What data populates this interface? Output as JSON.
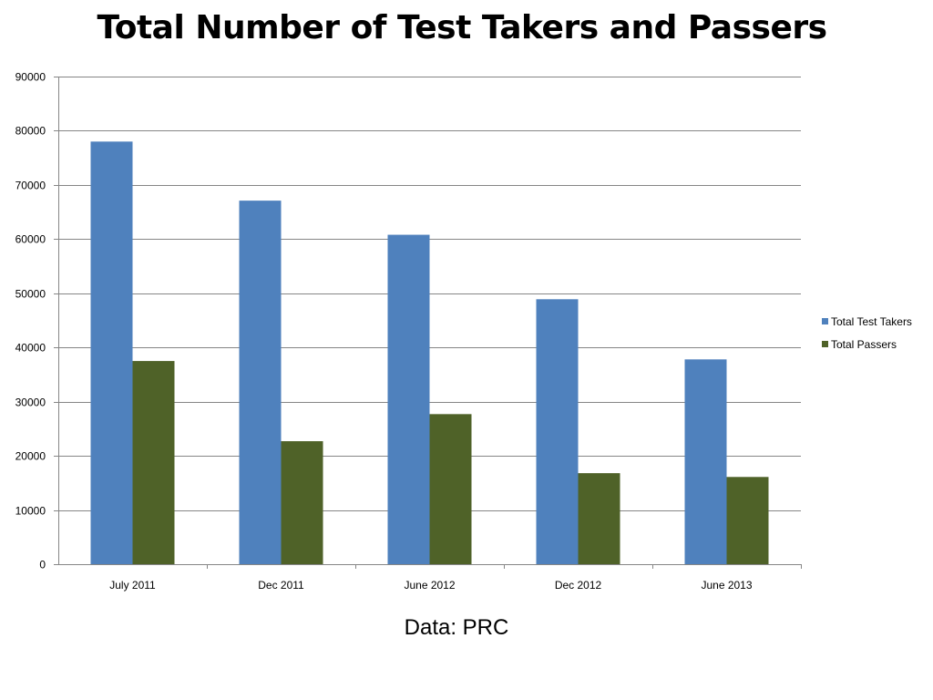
{
  "title": "Total Number of Test Takers and Passers",
  "caption": "Data: PRC",
  "chart_data": {
    "type": "bar",
    "categories": [
      "July 2011",
      "Dec 2011",
      "June 2012",
      "Dec 2012",
      "June 2013"
    ],
    "series": [
      {
        "name": "Total Test Takers",
        "color": "#4f81bd",
        "values": [
          78000,
          67100,
          60800,
          48900,
          37800
        ]
      },
      {
        "name": "Total Passers",
        "color": "#4f6228",
        "values": [
          37500,
          22700,
          27700,
          16800,
          16100
        ]
      }
    ],
    "y_ticks": [
      "0",
      "10000",
      "20000",
      "30000",
      "40000",
      "50000",
      "60000",
      "70000",
      "80000",
      "90000"
    ],
    "ylim": [
      0,
      90000
    ],
    "xlabel": "",
    "ylabel": "",
    "grid": true,
    "legend_position": "right"
  }
}
